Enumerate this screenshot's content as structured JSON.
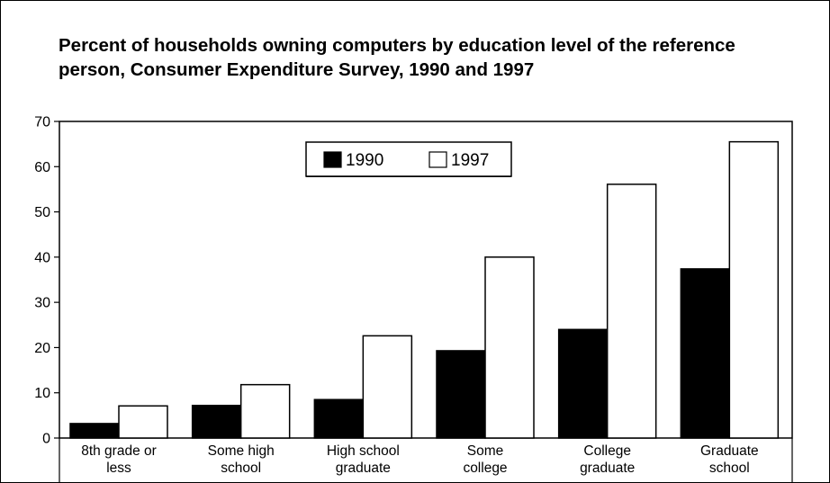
{
  "chart_data": {
    "type": "bar",
    "title": "Percent of households owning computers by education level of the reference person, Consumer Expenditure Survey, 1990 and 1997",
    "xlabel": "",
    "ylabel": "",
    "categories": [
      [
        "8th grade or",
        "less"
      ],
      [
        "Some high",
        "school"
      ],
      [
        "High school",
        "graduate"
      ],
      [
        "Some",
        "college"
      ],
      [
        "College",
        "graduate"
      ],
      [
        "Graduate",
        "school"
      ]
    ],
    "series": [
      {
        "name": "1990",
        "color": "#000000",
        "values": [
          3.2,
          7.2,
          8.5,
          19.3,
          24.0,
          37.4
        ]
      },
      {
        "name": "1997",
        "color": "#ffffff",
        "values": [
          7.1,
          11.8,
          22.6,
          40.0,
          56.1,
          65.5
        ]
      }
    ],
    "ylim": [
      0,
      70
    ],
    "yticks": [
      0,
      10,
      20,
      30,
      40,
      50,
      60,
      70
    ],
    "grid": false,
    "legend": "top-center"
  }
}
